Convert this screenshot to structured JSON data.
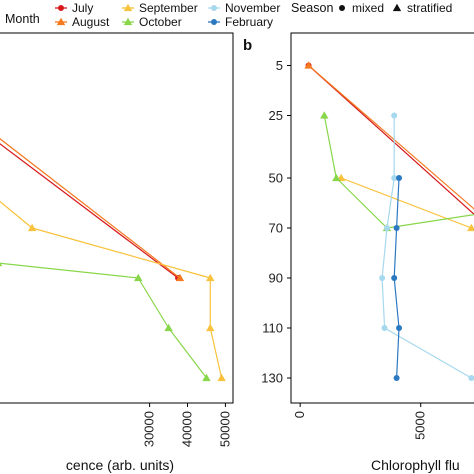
{
  "legend": {
    "month_title": "Month",
    "season_title": "Season",
    "months": [
      {
        "name": "July",
        "color": "#d7191c",
        "shape": "circle"
      },
      {
        "name": "August",
        "color": "#f4791f",
        "shape": "triangle"
      },
      {
        "name": "September",
        "color": "#f9c23c",
        "shape": "triangle"
      },
      {
        "name": "October",
        "color": "#88d64a",
        "shape": "triangle"
      },
      {
        "name": "November",
        "color": "#a6d8ee",
        "shape": "circle"
      },
      {
        "name": "February",
        "color": "#2b79c0",
        "shape": "circle"
      }
    ],
    "seasons": [
      {
        "name": "mixed",
        "shape": "circle"
      },
      {
        "name": "stratified",
        "shape": "triangle"
      }
    ]
  },
  "chart_data": [
    {
      "type": "line",
      "panel": "a",
      "title": "",
      "xlabel": "cence (arb. units)",
      "ylabel": "",
      "xlim": [
        -10000,
        52000
      ],
      "ylim": [
        -8,
        140
      ],
      "y_reversed": true,
      "x_ticks": [
        30000,
        40000,
        50000
      ],
      "x_tick_labels": [
        "30000",
        "40000",
        "50000"
      ],
      "grid": false,
      "series": [
        {
          "name": "July",
          "color": "#d7191c",
          "shape": "circle",
          "points": [
            [
              -15000,
              30
            ],
            [
              37500,
              90
            ]
          ]
        },
        {
          "name": "August",
          "color": "#f4791f",
          "shape": "triangle",
          "points": [
            [
              -14000,
              29
            ],
            [
              38000,
              90
            ]
          ]
        },
        {
          "name": "September",
          "color": "#f9c23c",
          "shape": "triangle",
          "points": [
            [
              -13000,
              55
            ],
            [
              -1000,
              70
            ],
            [
              46000,
              90
            ],
            [
              46000,
              110
            ],
            [
              49000,
              130
            ]
          ]
        },
        {
          "name": "October",
          "color": "#88d64a",
          "shape": "triangle",
          "points": [
            [
              -10000,
              84
            ],
            [
              27000,
              90
            ],
            [
              35000,
              110
            ],
            [
              45000,
              130
            ]
          ]
        }
      ]
    },
    {
      "type": "line",
      "panel": "b",
      "panel_label": "b",
      "title": "",
      "xlabel": "Chlorophyll flu",
      "ylabel": "",
      "xlim": [
        -380,
        7500
      ],
      "ylim": [
        -8,
        140
      ],
      "y_reversed": true,
      "x_ticks": [
        0,
        5000
      ],
      "x_tick_labels": [
        "0",
        "5000"
      ],
      "y_ticks": [
        5,
        25,
        50,
        70,
        90,
        110,
        130
      ],
      "y_tick_labels": [
        "5",
        "25",
        "50",
        "70",
        "90",
        "110",
        "130"
      ],
      "grid": false,
      "series": [
        {
          "name": "July",
          "color": "#d7191c",
          "shape": "circle",
          "points": [
            [
              350,
              5
            ],
            [
              9000,
              80
            ]
          ]
        },
        {
          "name": "August",
          "color": "#f4791f",
          "shape": "triangle",
          "points": [
            [
              350,
              5
            ],
            [
              9200,
              79
            ]
          ]
        },
        {
          "name": "September",
          "color": "#f9c23c",
          "shape": "triangle",
          "points": [
            [
              1700,
              50
            ],
            [
              7100,
              70
            ],
            [
              9000,
              74
            ]
          ]
        },
        {
          "name": "October",
          "color": "#88d64a",
          "shape": "triangle",
          "points": [
            [
              1000,
              25
            ],
            [
              1500,
              50
            ],
            [
              3600,
              70
            ],
            [
              9000,
              62
            ]
          ]
        },
        {
          "name": "November",
          "color": "#a6d8ee",
          "shape": "circle",
          "points": [
            [
              3900,
              25
            ],
            [
              3900,
              50
            ],
            [
              3600,
              70
            ],
            [
              3400,
              90
            ],
            [
              3500,
              110
            ],
            [
              7100,
              130
            ]
          ]
        },
        {
          "name": "February",
          "color": "#2b79c0",
          "shape": "circle",
          "points": [
            [
              4100,
              50
            ],
            [
              4000,
              70
            ],
            [
              3900,
              90
            ],
            [
              4100,
              110
            ],
            [
              4000,
              130
            ]
          ]
        }
      ]
    }
  ]
}
